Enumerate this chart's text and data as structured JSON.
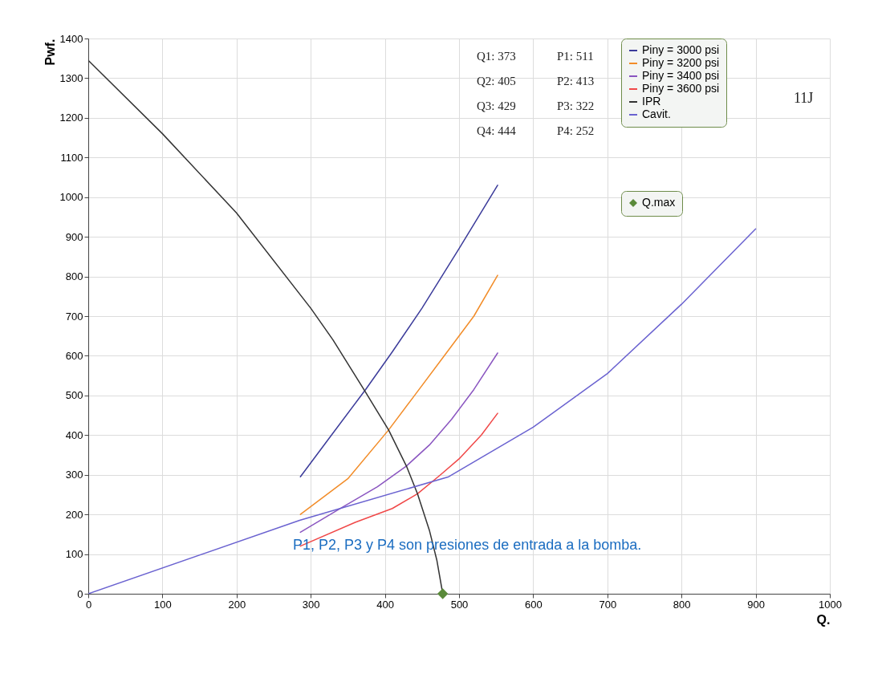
{
  "chart_data": {
    "type": "line",
    "xlabel": "Q.",
    "ylabel": "Pwf.",
    "xlim": [
      0,
      1000
    ],
    "xticks": [
      0,
      100,
      200,
      300,
      400,
      500,
      600,
      700,
      800,
      900,
      1000
    ],
    "ylim": [
      0,
      1400
    ],
    "yticks": [
      0,
      100,
      200,
      300,
      400,
      500,
      600,
      700,
      800,
      900,
      1000,
      1100,
      1200,
      1300,
      1400
    ],
    "grid": true,
    "legend": "top right",
    "series": [
      {
        "name": "Piny = 3000 psi",
        "color": "#3b3b9a",
        "x": [
          286,
          330,
          374,
          410,
          450,
          500,
          552
        ],
        "values": [
          295,
          405,
          515,
          610,
          720,
          870,
          1030
        ]
      },
      {
        "name": "Piny = 3200 psi",
        "color": "#f28c28",
        "x": [
          286,
          350,
          405,
          440,
          480,
          520,
          552
        ],
        "values": [
          200,
          290,
          413,
          500,
          600,
          700,
          803
        ]
      },
      {
        "name": "Piny = 3400 psi",
        "color": "#8a55c0",
        "x": [
          286,
          340,
          390,
          429,
          460,
          490,
          520,
          552
        ],
        "values": [
          155,
          215,
          270,
          322,
          375,
          440,
          515,
          607
        ]
      },
      {
        "name": "Piny = 3600 psi",
        "color": "#f04848",
        "x": [
          286,
          360,
          410,
          444,
          475,
          500,
          530,
          552
        ],
        "values": [
          120,
          180,
          215,
          252,
          300,
          340,
          400,
          455
        ]
      },
      {
        "name": "IPR",
        "color": "#333333",
        "x": [
          0,
          100,
          200,
          300,
          330,
          373,
          405,
          429,
          444,
          460,
          470,
          478
        ],
        "values": [
          1345,
          1160,
          960,
          720,
          640,
          511,
          413,
          322,
          252,
          160,
          85,
          0
        ]
      },
      {
        "name": "Cavit.",
        "color": "#6a62d0",
        "x": [
          0,
          285,
          486,
          600,
          700,
          800,
          900
        ],
        "values": [
          0,
          185,
          295,
          420,
          555,
          730,
          920
        ]
      },
      {
        "name": "Q.max",
        "type": "scatter",
        "marker": "diamond",
        "color": "#5a8a3a",
        "x": [
          478
        ],
        "values": [
          0
        ]
      }
    ],
    "annotations": [
      "Q1: 373",
      "P1: 511",
      "Q2: 405",
      "P2: 413",
      "Q3: 429",
      "P3: 322",
      "Q4: 444",
      "P4: 252",
      "11J",
      "P1, P2, P3 y P4 son presiones de entrada a la bomba."
    ]
  }
}
